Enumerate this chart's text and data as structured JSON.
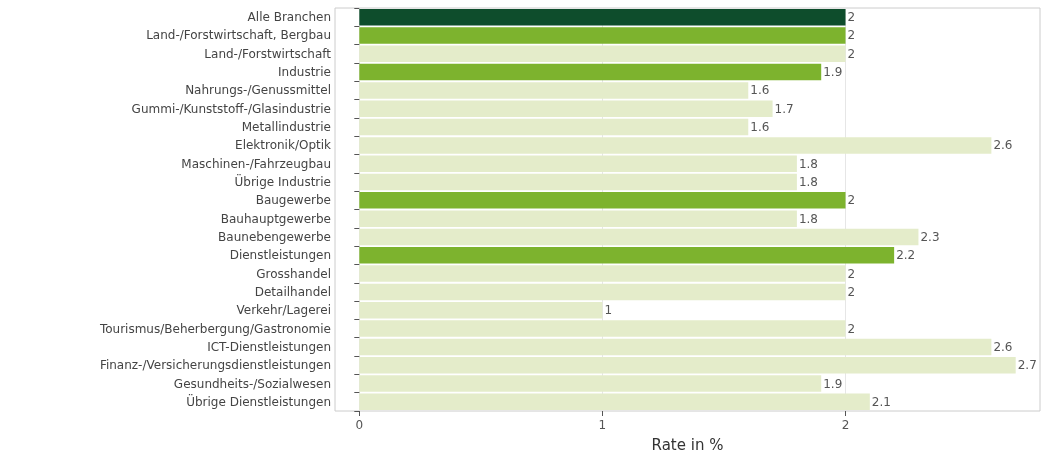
{
  "chart_data": {
    "type": "bar",
    "orientation": "horizontal",
    "xlabel": "Rate in %",
    "categories": [
      "Alle Branchen",
      "Land-/Forstwirtschaft, Bergbau",
      "Land-/Forstwirtschaft",
      "Industrie",
      "Nahrungs-/Genussmittel",
      "Gummi-/Kunststoff-/Glasindustrie",
      "Metallindustrie",
      "Elektronik/Optik",
      "Maschinen-/Fahrzeugbau",
      "Übrige Industrie",
      "Baugewerbe",
      "Bauhauptgewerbe",
      "Baunebengewerbe",
      "Dienstleistungen",
      "Grosshandel",
      "Detailhandel",
      "Verkehr/Lagerei",
      "Tourismus/Beherbergung/Gastronomie",
      "ICT-Dienstleistungen",
      "Finanz-/Versicherungsdienstleistungen",
      "Gesundheits-/Sozialwesen",
      "Übrige Dienstleistungen"
    ],
    "values": [
      2,
      2,
      2,
      1.9,
      1.6,
      1.7,
      1.6,
      2.6,
      1.8,
      1.8,
      2,
      1.8,
      2.3,
      2.2,
      2,
      2,
      1,
      2,
      2.6,
      2.7,
      1.9,
      2.1
    ],
    "colors": [
      "#0e4d2c",
      "#7db32e",
      "#e4ecca",
      "#7db32e",
      "#e4ecca",
      "#e4ecca",
      "#e4ecca",
      "#e4ecca",
      "#e4ecca",
      "#e4ecca",
      "#7db32e",
      "#e4ecca",
      "#e4ecca",
      "#7db32e",
      "#e4ecca",
      "#e4ecca",
      "#e4ecca",
      "#e4ecca",
      "#e4ecca",
      "#e4ecca",
      "#e4ecca",
      "#e4ecca"
    ],
    "xlim": [
      -0.1,
      2.8
    ],
    "xticks": [
      0,
      1,
      2
    ],
    "grid": "x",
    "data_labels": true
  }
}
